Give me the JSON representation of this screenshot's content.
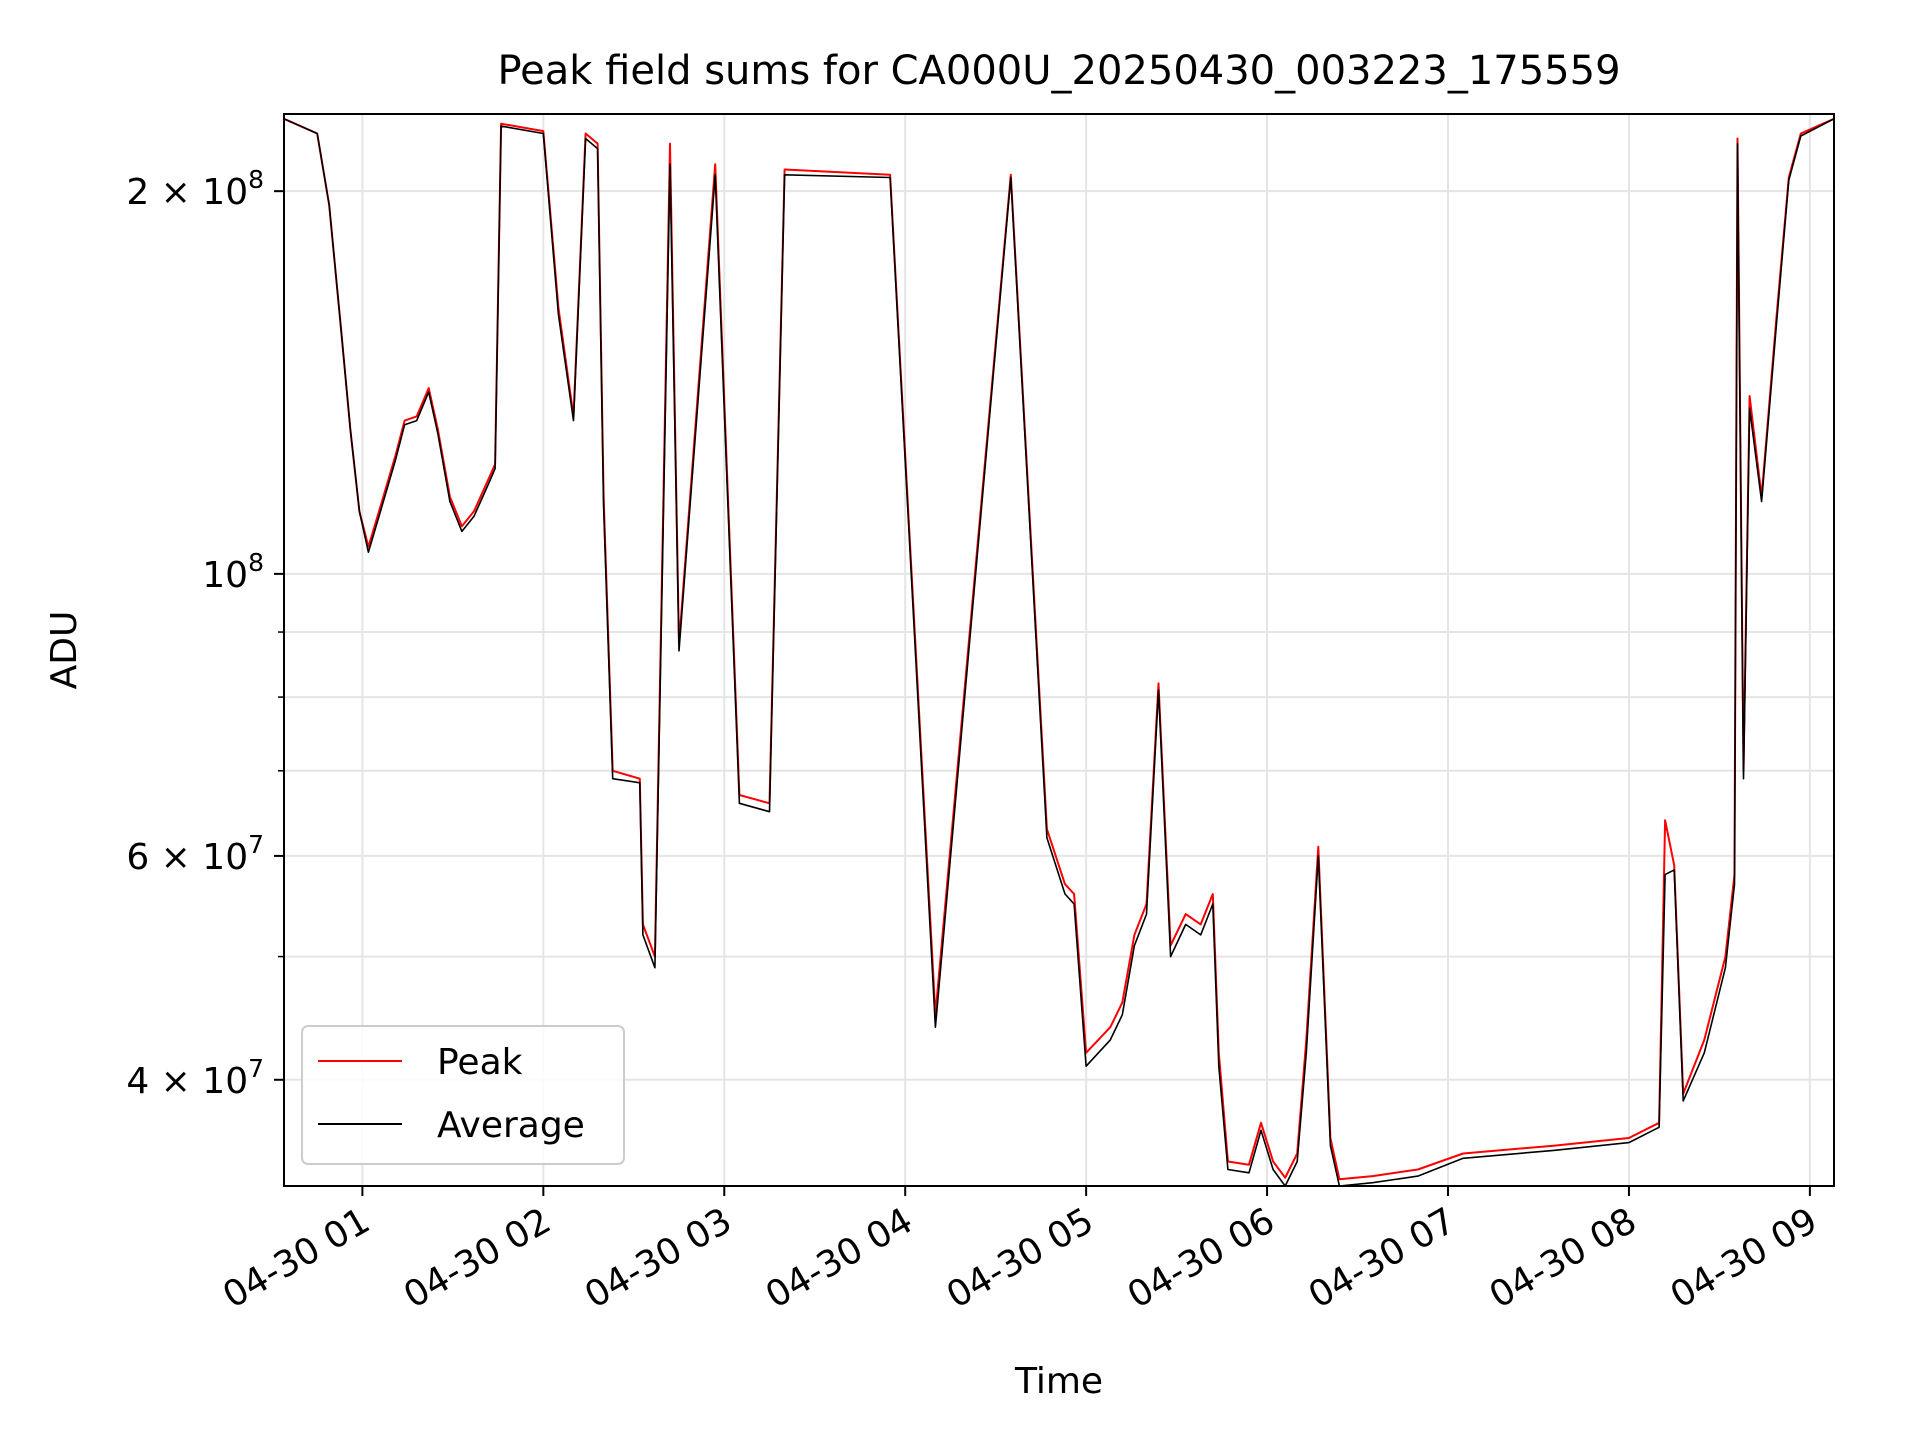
{
  "chart_data": {
    "type": "line",
    "title": "Peak field sums for CA000U_20250430_003223_175559",
    "xlabel": "Time",
    "ylabel": "ADU",
    "y_scale": "log",
    "ylim": [
      33000000,
      230000000
    ],
    "xlim": [
      "2025-04-30 00:34",
      "2025-04-30 09:08"
    ],
    "grid": true,
    "legend_position": "lower-left",
    "x_ticks": [
      {
        "value": "2025-04-30 01:00",
        "label": "04-30 01"
      },
      {
        "value": "2025-04-30 02:00",
        "label": "04-30 02"
      },
      {
        "value": "2025-04-30 03:00",
        "label": "04-30 03"
      },
      {
        "value": "2025-04-30 04:00",
        "label": "04-30 04"
      },
      {
        "value": "2025-04-30 05:00",
        "label": "04-30 05"
      },
      {
        "value": "2025-04-30 06:00",
        "label": "04-30 06"
      },
      {
        "value": "2025-04-30 07:00",
        "label": "04-30 07"
      },
      {
        "value": "2025-04-30 08:00",
        "label": "04-30 08"
      },
      {
        "value": "2025-04-30 09:00",
        "label": "04-30 09"
      }
    ],
    "y_ticks": [
      {
        "value": 40000000,
        "base": "4 × 10",
        "exp": "7"
      },
      {
        "value": 60000000,
        "base": "6 × 10",
        "exp": "7"
      },
      {
        "value": 100000000,
        "base": "10",
        "exp": "8"
      },
      {
        "value": 200000000,
        "base": "2 × 10",
        "exp": "8"
      }
    ],
    "y_minor_ticks": [
      50000000,
      70000000,
      80000000,
      90000000
    ],
    "series": [
      {
        "name": "Peak",
        "color": "#ff0000",
        "points": [
          [
            "2025-04-30 00:34",
            228000000.0
          ],
          [
            "2025-04-30 00:45",
            222000000.0
          ],
          [
            "2025-04-30 00:49",
            195000000.0
          ],
          [
            "2025-04-30 00:53",
            155000000.0
          ],
          [
            "2025-04-30 00:56",
            130000000.0
          ],
          [
            "2025-04-30 00:59",
            112000000.0
          ],
          [
            "2025-04-30 01:02",
            105000000.0
          ],
          [
            "2025-04-30 01:06",
            113000000.0
          ],
          [
            "2025-04-30 01:11",
            124000000.0
          ],
          [
            "2025-04-30 01:14",
            132000000.0
          ],
          [
            "2025-04-30 01:18",
            133000000.0
          ],
          [
            "2025-04-30 01:22",
            140000000.0
          ],
          [
            "2025-04-30 01:25",
            130000000.0
          ],
          [
            "2025-04-30 01:29",
            115000000.0
          ],
          [
            "2025-04-30 01:33",
            109000000.0
          ],
          [
            "2025-04-30 01:37",
            112000000.0
          ],
          [
            "2025-04-30 01:42",
            119000000.0
          ],
          [
            "2025-04-30 01:44",
            122000000.0
          ],
          [
            "2025-04-30 01:46",
            226000000.0
          ],
          [
            "2025-04-30 02:00",
            223000000.0
          ],
          [
            "2025-04-30 02:05",
            162000000.0
          ],
          [
            "2025-04-30 02:10",
            133000000.0
          ],
          [
            "2025-04-30 02:14",
            222000000.0
          ],
          [
            "2025-04-30 02:18",
            218000000.0
          ],
          [
            "2025-04-30 02:20",
            115000000.0
          ],
          [
            "2025-04-30 02:23",
            70000000.0
          ],
          [
            "2025-04-30 02:32",
            69000000.0
          ],
          [
            "2025-04-30 02:33",
            53000000.0
          ],
          [
            "2025-04-30 02:37",
            50000000.0
          ],
          [
            "2025-04-30 02:42",
            218000000.0
          ],
          [
            "2025-04-30 02:45",
            88000000.0
          ],
          [
            "2025-04-30 02:57",
            210000000.0
          ],
          [
            "2025-04-30 03:05",
            67000000.0
          ],
          [
            "2025-04-30 03:15",
            66000000.0
          ],
          [
            "2025-04-30 03:20",
            208000000.0
          ],
          [
            "2025-04-30 03:55",
            206000000.0
          ],
          [
            "2025-04-30 04:10",
            45000000.0
          ],
          [
            "2025-04-30 04:35",
            206000000.0
          ],
          [
            "2025-04-30 04:47",
            63000000.0
          ],
          [
            "2025-04-30 04:53",
            57000000.0
          ],
          [
            "2025-04-30 04:56",
            56000000.0
          ],
          [
            "2025-04-30 05:00",
            42000000.0
          ],
          [
            "2025-04-30 05:08",
            44000000.0
          ],
          [
            "2025-04-30 05:12",
            46000000.0
          ],
          [
            "2025-04-30 05:16",
            52000000.0
          ],
          [
            "2025-04-30 05:20",
            55000000.0
          ],
          [
            "2025-04-30 05:24",
            82000000.0
          ],
          [
            "2025-04-30 05:28",
            51000000.0
          ],
          [
            "2025-04-30 05:33",
            54000000.0
          ],
          [
            "2025-04-30 05:38",
            53000000.0
          ],
          [
            "2025-04-30 05:42",
            56000000.0
          ],
          [
            "2025-04-30 05:44",
            42000000.0
          ],
          [
            "2025-04-30 05:47",
            34500000.0
          ],
          [
            "2025-04-30 05:54",
            34300000.0
          ],
          [
            "2025-04-30 05:58",
            37000000.0
          ],
          [
            "2025-04-30 06:02",
            34500000.0
          ],
          [
            "2025-04-30 06:06",
            33500000.0
          ],
          [
            "2025-04-30 06:10",
            35000000.0
          ],
          [
            "2025-04-30 06:13",
            43000000.0
          ],
          [
            "2025-04-30 06:17",
            61000000.0
          ],
          [
            "2025-04-30 06:21",
            36000000.0
          ],
          [
            "2025-04-30 06:24",
            33400000.0
          ],
          [
            "2025-04-30 06:35",
            33600000.0
          ],
          [
            "2025-04-30 06:50",
            34000000.0
          ],
          [
            "2025-04-30 07:05",
            35000000.0
          ],
          [
            "2025-04-30 07:35",
            35500000.0
          ],
          [
            "2025-04-30 08:00",
            36000000.0
          ],
          [
            "2025-04-30 08:10",
            37000000.0
          ],
          [
            "2025-04-30 08:12",
            64000000.0
          ],
          [
            "2025-04-30 08:15",
            59000000.0
          ],
          [
            "2025-04-30 08:18",
            39000000.0
          ],
          [
            "2025-04-30 08:25",
            43000000.0
          ],
          [
            "2025-04-30 08:32",
            50000000.0
          ],
          [
            "2025-04-30 08:35",
            58000000.0
          ],
          [
            "2025-04-30 08:36",
            220000000.0
          ],
          [
            "2025-04-30 08:38",
            70000000.0
          ],
          [
            "2025-04-30 08:40",
            138000000.0
          ],
          [
            "2025-04-30 08:44",
            115000000.0
          ],
          [
            "2025-04-30 08:49",
            160000000.0
          ],
          [
            "2025-04-30 08:53",
            205000000.0
          ],
          [
            "2025-04-30 08:57",
            222000000.0
          ],
          [
            "2025-04-30 09:08",
            228000000.0
          ]
        ]
      },
      {
        "name": "Average",
        "color": "#000000",
        "points": [
          [
            "2025-04-30 00:34",
            228000000.0
          ],
          [
            "2025-04-30 00:45",
            222000000.0
          ],
          [
            "2025-04-30 00:49",
            195000000.0
          ],
          [
            "2025-04-30 00:53",
            155000000.0
          ],
          [
            "2025-04-30 00:56",
            130000000.0
          ],
          [
            "2025-04-30 00:59",
            112000000.0
          ],
          [
            "2025-04-30 01:02",
            104000000.0
          ],
          [
            "2025-04-30 01:06",
            112000000.0
          ],
          [
            "2025-04-30 01:11",
            123000000.0
          ],
          [
            "2025-04-30 01:14",
            131000000.0
          ],
          [
            "2025-04-30 01:18",
            132000000.0
          ],
          [
            "2025-04-30 01:22",
            139000000.0
          ],
          [
            "2025-04-30 01:25",
            129000000.0
          ],
          [
            "2025-04-30 01:29",
            114000000.0
          ],
          [
            "2025-04-30 01:33",
            108000000.0
          ],
          [
            "2025-04-30 01:37",
            111000000.0
          ],
          [
            "2025-04-30 01:42",
            118000000.0
          ],
          [
            "2025-04-30 01:44",
            121000000.0
          ],
          [
            "2025-04-30 01:46",
            225000000.0
          ],
          [
            "2025-04-30 02:00",
            222000000.0
          ],
          [
            "2025-04-30 02:05",
            160000000.0
          ],
          [
            "2025-04-30 02:10",
            132000000.0
          ],
          [
            "2025-04-30 02:14",
            220000000.0
          ],
          [
            "2025-04-30 02:18",
            216000000.0
          ],
          [
            "2025-04-30 02:20",
            113000000.0
          ],
          [
            "2025-04-30 02:23",
            69000000.0
          ],
          [
            "2025-04-30 02:32",
            68500000.0
          ],
          [
            "2025-04-30 02:33",
            52000000.0
          ],
          [
            "2025-04-30 02:37",
            49000000.0
          ],
          [
            "2025-04-30 02:42",
            210000000.0
          ],
          [
            "2025-04-30 02:45",
            87000000.0
          ],
          [
            "2025-04-30 02:57",
            206000000.0
          ],
          [
            "2025-04-30 03:05",
            66000000.0
          ],
          [
            "2025-04-30 03:15",
            65000000.0
          ],
          [
            "2025-04-30 03:20",
            206000000.0
          ],
          [
            "2025-04-30 03:55",
            205000000.0
          ],
          [
            "2025-04-30 04:10",
            44000000.0
          ],
          [
            "2025-04-30 04:35",
            205000000.0
          ],
          [
            "2025-04-30 04:47",
            62000000.0
          ],
          [
            "2025-04-30 04:53",
            56000000.0
          ],
          [
            "2025-04-30 04:56",
            55000000.0
          ],
          [
            "2025-04-30 05:00",
            41000000.0
          ],
          [
            "2025-04-30 05:08",
            43000000.0
          ],
          [
            "2025-04-30 05:12",
            45000000.0
          ],
          [
            "2025-04-30 05:16",
            51000000.0
          ],
          [
            "2025-04-30 05:20",
            54000000.0
          ],
          [
            "2025-04-30 05:24",
            81000000.0
          ],
          [
            "2025-04-30 05:28",
            50000000.0
          ],
          [
            "2025-04-30 05:33",
            53000000.0
          ],
          [
            "2025-04-30 05:38",
            52000000.0
          ],
          [
            "2025-04-30 05:42",
            55000000.0
          ],
          [
            "2025-04-30 05:44",
            41000000.0
          ],
          [
            "2025-04-30 05:47",
            34000000.0
          ],
          [
            "2025-04-30 05:54",
            33800000.0
          ],
          [
            "2025-04-30 05:58",
            36500000.0
          ],
          [
            "2025-04-30 06:02",
            34000000.0
          ],
          [
            "2025-04-30 06:06",
            33000000.0
          ],
          [
            "2025-04-30 06:10",
            34500000.0
          ],
          [
            "2025-04-30 06:13",
            42000000.0
          ],
          [
            "2025-04-30 06:17",
            60000000.0
          ],
          [
            "2025-04-30 06:21",
            35500000.0
          ],
          [
            "2025-04-30 06:24",
            33000000.0
          ],
          [
            "2025-04-30 06:35",
            33200000.0
          ],
          [
            "2025-04-30 06:50",
            33600000.0
          ],
          [
            "2025-04-30 07:05",
            34700000.0
          ],
          [
            "2025-04-30 07:35",
            35200000.0
          ],
          [
            "2025-04-30 08:00",
            35700000.0
          ],
          [
            "2025-04-30 08:10",
            36700000.0
          ],
          [
            "2025-04-30 08:12",
            58000000.0
          ],
          [
            "2025-04-30 08:15",
            58500000.0
          ],
          [
            "2025-04-30 08:18",
            38500000.0
          ],
          [
            "2025-04-30 08:25",
            42000000.0
          ],
          [
            "2025-04-30 08:32",
            49000000.0
          ],
          [
            "2025-04-30 08:35",
            57000000.0
          ],
          [
            "2025-04-30 08:36",
            218000000.0
          ],
          [
            "2025-04-30 08:38",
            69000000.0
          ],
          [
            "2025-04-30 08:40",
            135000000.0
          ],
          [
            "2025-04-30 08:44",
            114000000.0
          ],
          [
            "2025-04-30 08:49",
            158000000.0
          ],
          [
            "2025-04-30 08:53",
            204000000.0
          ],
          [
            "2025-04-30 08:57",
            221000000.0
          ],
          [
            "2025-04-30 09:08",
            228000000.0
          ]
        ]
      }
    ]
  }
}
